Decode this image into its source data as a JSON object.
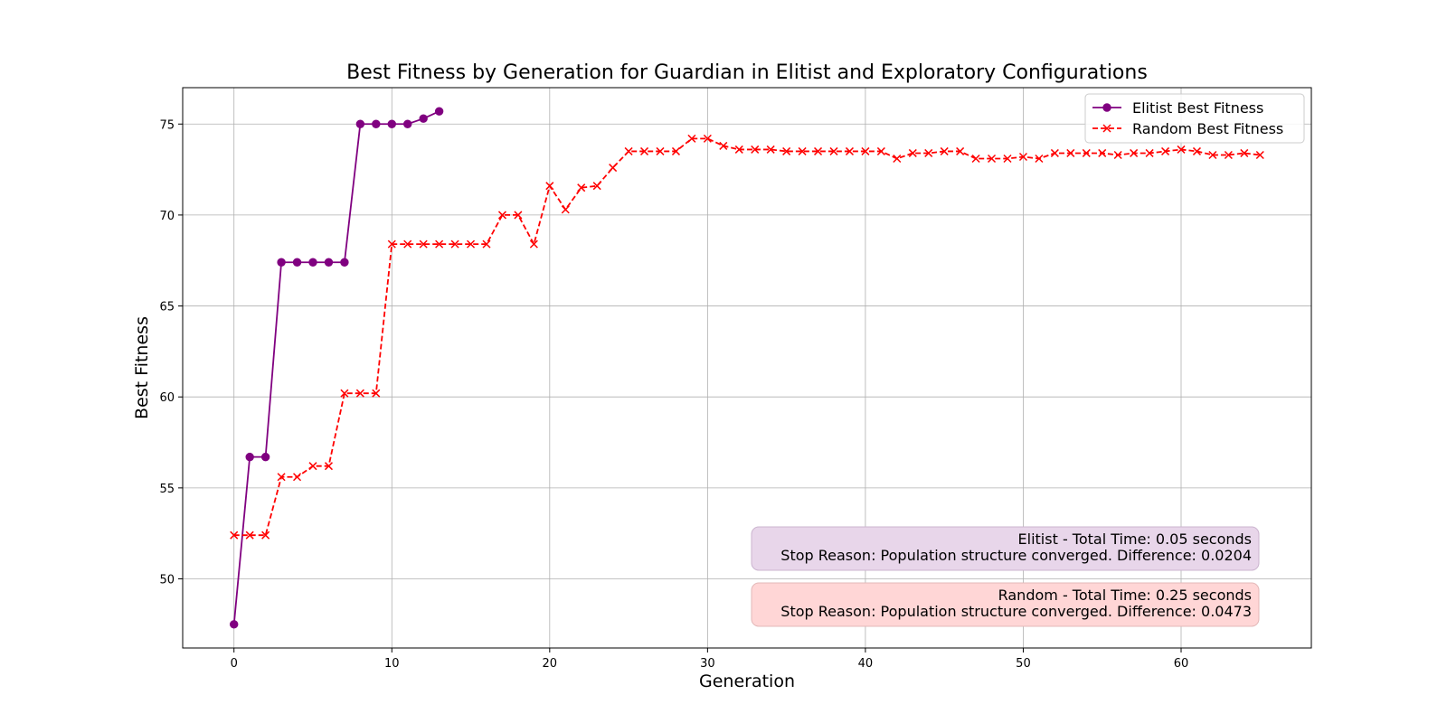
{
  "chart_data": {
    "type": "line",
    "title": "Best Fitness by Generation for Guardian in Elitist and Exploratory Configurations",
    "xlabel": "Generation",
    "ylabel": "Best Fitness",
    "xlim": [
      -3.25,
      68.25
    ],
    "ylim": [
      46.2,
      77.0
    ],
    "xticks": [
      0,
      10,
      20,
      30,
      40,
      50,
      60
    ],
    "yticks": [
      50,
      55,
      60,
      65,
      70,
      75
    ],
    "grid": true,
    "legend_position": "top-right",
    "series": [
      {
        "name": "Elitist Best Fitness",
        "color": "#800080",
        "line_style": "solid",
        "marker": "circle",
        "x": [
          0,
          1,
          2,
          3,
          4,
          5,
          6,
          7,
          8,
          9,
          10,
          11,
          12,
          13
        ],
        "y": [
          47.5,
          56.7,
          56.7,
          67.4,
          67.4,
          67.4,
          67.4,
          67.4,
          75.0,
          75.0,
          75.0,
          75.0,
          75.3,
          75.7
        ]
      },
      {
        "name": "Random Best Fitness",
        "color": "#ff0000",
        "line_style": "dashed",
        "marker": "x",
        "x": [
          0,
          1,
          2,
          3,
          4,
          5,
          6,
          7,
          8,
          9,
          10,
          11,
          12,
          13,
          14,
          15,
          16,
          17,
          18,
          19,
          20,
          21,
          22,
          23,
          24,
          25,
          26,
          27,
          28,
          29,
          30,
          31,
          32,
          33,
          34,
          35,
          36,
          37,
          38,
          39,
          40,
          41,
          42,
          43,
          44,
          45,
          46,
          47,
          48,
          49,
          50,
          51,
          52,
          53,
          54,
          55,
          56,
          57,
          58,
          59,
          60,
          61,
          62,
          63,
          64,
          65
        ],
        "y": [
          52.4,
          52.4,
          52.4,
          55.6,
          55.6,
          56.2,
          56.2,
          60.2,
          60.2,
          60.2,
          68.4,
          68.4,
          68.4,
          68.4,
          68.4,
          68.4,
          68.4,
          70.0,
          70.0,
          68.4,
          71.6,
          70.3,
          71.5,
          71.6,
          72.6,
          73.5,
          73.5,
          73.5,
          73.5,
          74.2,
          74.2,
          73.8,
          73.6,
          73.6,
          73.6,
          73.5,
          73.5,
          73.5,
          73.5,
          73.5,
          73.5,
          73.5,
          73.1,
          73.4,
          73.4,
          73.5,
          73.5,
          73.1,
          73.1,
          73.1,
          73.2,
          73.1,
          73.4,
          73.4,
          73.4,
          73.4,
          73.3,
          73.4,
          73.4,
          73.5,
          73.6,
          73.5,
          73.3,
          73.3,
          73.4,
          73.3
        ]
      }
    ],
    "annotations": [
      {
        "name": "elitist",
        "lines": [
          "Elitist - Total Time: 0.05 seconds",
          "Stop Reason: Population structure converged. Difference: 0.0204"
        ],
        "background": "#e8d6ea",
        "border": "#cbb4cf"
      },
      {
        "name": "random",
        "lines": [
          "Random - Total Time: 0.25 seconds",
          "Stop Reason: Population structure converged. Difference: 0.0473"
        ],
        "background": "#ffd6d6",
        "border": "#e3b8b8"
      }
    ]
  }
}
